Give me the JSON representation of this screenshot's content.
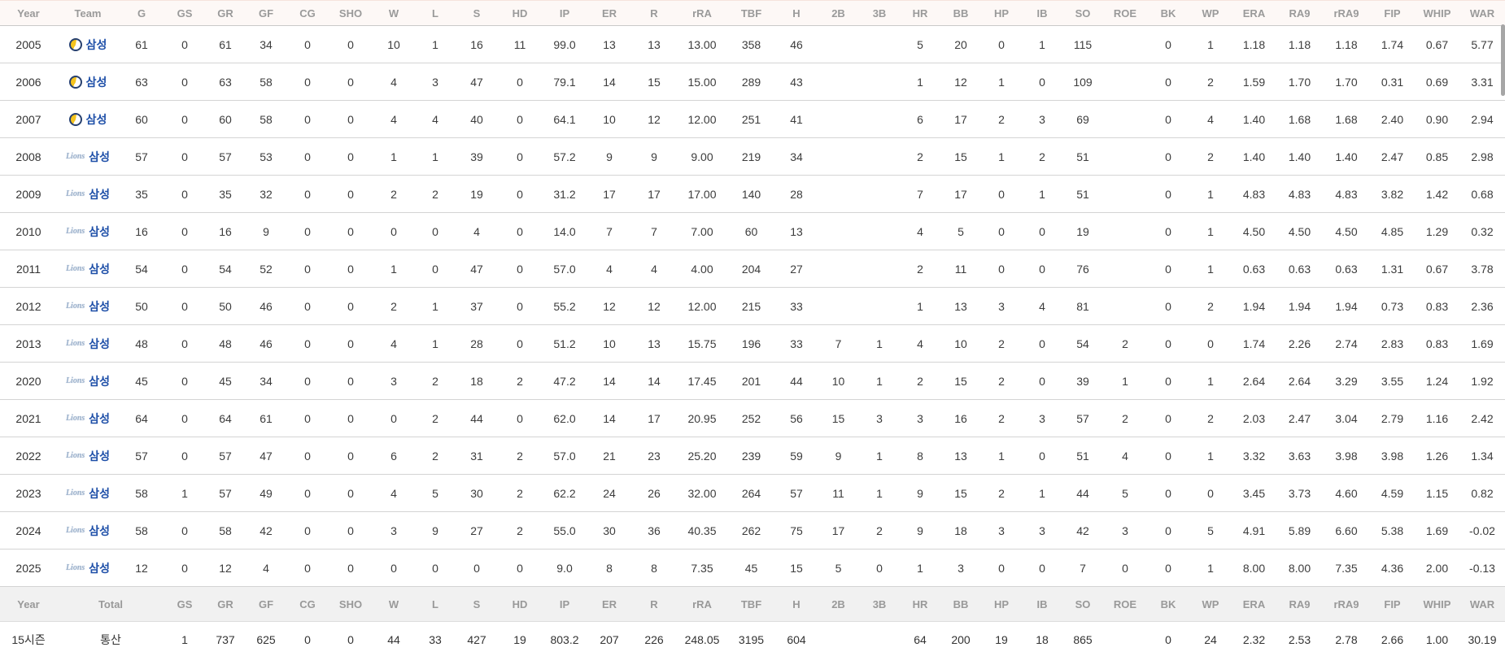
{
  "table": {
    "columns": [
      "Year",
      "Team",
      "G",
      "GS",
      "GR",
      "GF",
      "CG",
      "SHO",
      "W",
      "L",
      "S",
      "HD",
      "IP",
      "ER",
      "R",
      "rRA",
      "TBF",
      "H",
      "2B",
      "3B",
      "HR",
      "BB",
      "HP",
      "IB",
      "SO",
      "ROE",
      "BK",
      "WP",
      "ERA",
      "RA9",
      "rRA9",
      "FIP",
      "WHIP",
      "WAR"
    ],
    "team_name": "삼성",
    "rows": [
      {
        "year": "2005",
        "team": "삼성",
        "logo": "classic",
        "values": [
          "61",
          "0",
          "61",
          "34",
          "0",
          "0",
          "10",
          "1",
          "16",
          "11",
          "99.0",
          "13",
          "13",
          "13.00",
          "358",
          "46",
          "",
          "",
          "5",
          "20",
          "0",
          "1",
          "115",
          "",
          "0",
          "1",
          "1.18",
          "1.18",
          "1.18",
          "1.74",
          "0.67",
          "5.77"
        ]
      },
      {
        "year": "2006",
        "team": "삼성",
        "logo": "classic",
        "values": [
          "63",
          "0",
          "63",
          "58",
          "0",
          "0",
          "4",
          "3",
          "47",
          "0",
          "79.1",
          "14",
          "15",
          "15.00",
          "289",
          "43",
          "",
          "",
          "1",
          "12",
          "1",
          "0",
          "109",
          "",
          "0",
          "2",
          "1.59",
          "1.70",
          "1.70",
          "0.31",
          "0.69",
          "3.31"
        ]
      },
      {
        "year": "2007",
        "team": "삼성",
        "logo": "classic",
        "values": [
          "60",
          "0",
          "60",
          "58",
          "0",
          "0",
          "4",
          "4",
          "40",
          "0",
          "64.1",
          "10",
          "12",
          "12.00",
          "251",
          "41",
          "",
          "",
          "6",
          "17",
          "2",
          "3",
          "69",
          "",
          "0",
          "4",
          "1.40",
          "1.68",
          "1.68",
          "2.40",
          "0.90",
          "2.94"
        ]
      },
      {
        "year": "2008",
        "team": "삼성",
        "logo": "lions",
        "values": [
          "57",
          "0",
          "57",
          "53",
          "0",
          "0",
          "1",
          "1",
          "39",
          "0",
          "57.2",
          "9",
          "9",
          "9.00",
          "219",
          "34",
          "",
          "",
          "2",
          "15",
          "1",
          "2",
          "51",
          "",
          "0",
          "2",
          "1.40",
          "1.40",
          "1.40",
          "2.47",
          "0.85",
          "2.98"
        ]
      },
      {
        "year": "2009",
        "team": "삼성",
        "logo": "lions",
        "values": [
          "35",
          "0",
          "35",
          "32",
          "0",
          "0",
          "2",
          "2",
          "19",
          "0",
          "31.2",
          "17",
          "17",
          "17.00",
          "140",
          "28",
          "",
          "",
          "7",
          "17",
          "0",
          "1",
          "51",
          "",
          "0",
          "1",
          "4.83",
          "4.83",
          "4.83",
          "3.82",
          "1.42",
          "0.68"
        ]
      },
      {
        "year": "2010",
        "team": "삼성",
        "logo": "lions",
        "values": [
          "16",
          "0",
          "16",
          "9",
          "0",
          "0",
          "0",
          "0",
          "4",
          "0",
          "14.0",
          "7",
          "7",
          "7.00",
          "60",
          "13",
          "",
          "",
          "4",
          "5",
          "0",
          "0",
          "19",
          "",
          "0",
          "1",
          "4.50",
          "4.50",
          "4.50",
          "4.85",
          "1.29",
          "0.32"
        ]
      },
      {
        "year": "2011",
        "team": "삼성",
        "logo": "lions",
        "values": [
          "54",
          "0",
          "54",
          "52",
          "0",
          "0",
          "1",
          "0",
          "47",
          "0",
          "57.0",
          "4",
          "4",
          "4.00",
          "204",
          "27",
          "",
          "",
          "2",
          "11",
          "0",
          "0",
          "76",
          "",
          "0",
          "1",
          "0.63",
          "0.63",
          "0.63",
          "1.31",
          "0.67",
          "3.78"
        ]
      },
      {
        "year": "2012",
        "team": "삼성",
        "logo": "lions",
        "values": [
          "50",
          "0",
          "50",
          "46",
          "0",
          "0",
          "2",
          "1",
          "37",
          "0",
          "55.2",
          "12",
          "12",
          "12.00",
          "215",
          "33",
          "",
          "",
          "1",
          "13",
          "3",
          "4",
          "81",
          "",
          "0",
          "2",
          "1.94",
          "1.94",
          "1.94",
          "0.73",
          "0.83",
          "2.36"
        ]
      },
      {
        "year": "2013",
        "team": "삼성",
        "logo": "lions",
        "values": [
          "48",
          "0",
          "48",
          "46",
          "0",
          "0",
          "4",
          "1",
          "28",
          "0",
          "51.2",
          "10",
          "13",
          "15.75",
          "196",
          "33",
          "7",
          "1",
          "4",
          "10",
          "2",
          "0",
          "54",
          "2",
          "0",
          "0",
          "1.74",
          "2.26",
          "2.74",
          "2.83",
          "0.83",
          "1.69"
        ]
      },
      {
        "year": "2020",
        "team": "삼성",
        "logo": "lions",
        "values": [
          "45",
          "0",
          "45",
          "34",
          "0",
          "0",
          "3",
          "2",
          "18",
          "2",
          "47.2",
          "14",
          "14",
          "17.45",
          "201",
          "44",
          "10",
          "1",
          "2",
          "15",
          "2",
          "0",
          "39",
          "1",
          "0",
          "1",
          "2.64",
          "2.64",
          "3.29",
          "3.55",
          "1.24",
          "1.92"
        ]
      },
      {
        "year": "2021",
        "team": "삼성",
        "logo": "lions",
        "values": [
          "64",
          "0",
          "64",
          "61",
          "0",
          "0",
          "0",
          "2",
          "44",
          "0",
          "62.0",
          "14",
          "17",
          "20.95",
          "252",
          "56",
          "15",
          "3",
          "3",
          "16",
          "2",
          "3",
          "57",
          "2",
          "0",
          "2",
          "2.03",
          "2.47",
          "3.04",
          "2.79",
          "1.16",
          "2.42"
        ]
      },
      {
        "year": "2022",
        "team": "삼성",
        "logo": "lions",
        "values": [
          "57",
          "0",
          "57",
          "47",
          "0",
          "0",
          "6",
          "2",
          "31",
          "2",
          "57.0",
          "21",
          "23",
          "25.20",
          "239",
          "59",
          "9",
          "1",
          "8",
          "13",
          "1",
          "0",
          "51",
          "4",
          "0",
          "1",
          "3.32",
          "3.63",
          "3.98",
          "3.98",
          "1.26",
          "1.34"
        ]
      },
      {
        "year": "2023",
        "team": "삼성",
        "logo": "lions",
        "values": [
          "58",
          "1",
          "57",
          "49",
          "0",
          "0",
          "4",
          "5",
          "30",
          "2",
          "62.2",
          "24",
          "26",
          "32.00",
          "264",
          "57",
          "11",
          "1",
          "9",
          "15",
          "2",
          "1",
          "44",
          "5",
          "0",
          "0",
          "3.45",
          "3.73",
          "4.60",
          "4.59",
          "1.15",
          "0.82"
        ]
      },
      {
        "year": "2024",
        "team": "삼성",
        "logo": "lions",
        "values": [
          "58",
          "0",
          "58",
          "42",
          "0",
          "0",
          "3",
          "9",
          "27",
          "2",
          "55.0",
          "30",
          "36",
          "40.35",
          "262",
          "75",
          "17",
          "2",
          "9",
          "18",
          "3",
          "3",
          "42",
          "3",
          "0",
          "5",
          "4.91",
          "5.89",
          "6.60",
          "5.38",
          "1.69",
          "-0.02"
        ]
      },
      {
        "year": "2025",
        "team": "삼성",
        "logo": "lions",
        "values": [
          "12",
          "0",
          "12",
          "4",
          "0",
          "0",
          "0",
          "0",
          "0",
          "0",
          "9.0",
          "8",
          "8",
          "7.35",
          "45",
          "15",
          "5",
          "0",
          "1",
          "3",
          "0",
          "0",
          "7",
          "0",
          "0",
          "1",
          "8.00",
          "8.00",
          "7.35",
          "4.36",
          "2.00",
          "-0.13"
        ]
      }
    ],
    "footer": {
      "header": [
        "Year",
        "Total",
        "GS",
        "GR",
        "GF",
        "CG",
        "SHO",
        "W",
        "L",
        "S",
        "HD",
        "IP",
        "ER",
        "R",
        "rRA",
        "TBF",
        "H",
        "2B",
        "3B",
        "HR",
        "BB",
        "HP",
        "IB",
        "SO",
        "ROE",
        "BK",
        "WP",
        "ERA",
        "RA9",
        "rRA9",
        "FIP",
        "WHIP",
        "WAR"
      ],
      "season_label": "15시즌",
      "career_label": "통산",
      "values": [
        "1",
        "737",
        "625",
        "0",
        "0",
        "44",
        "33",
        "427",
        "19",
        "803.2",
        "207",
        "226",
        "248.05",
        "3195",
        "604",
        "",
        "",
        "64",
        "200",
        "19",
        "18",
        "865",
        "",
        "0",
        "24",
        "2.32",
        "2.53",
        "2.78",
        "2.66",
        "1.00",
        "30.19"
      ]
    }
  },
  "colors": {
    "team_blue": "#1e4fa8",
    "header_bg": "#fdf8f6",
    "header_text": "#9a9a9a",
    "footer_header_bg": "#f1f1f1",
    "row_border": "#d4d4d4"
  }
}
